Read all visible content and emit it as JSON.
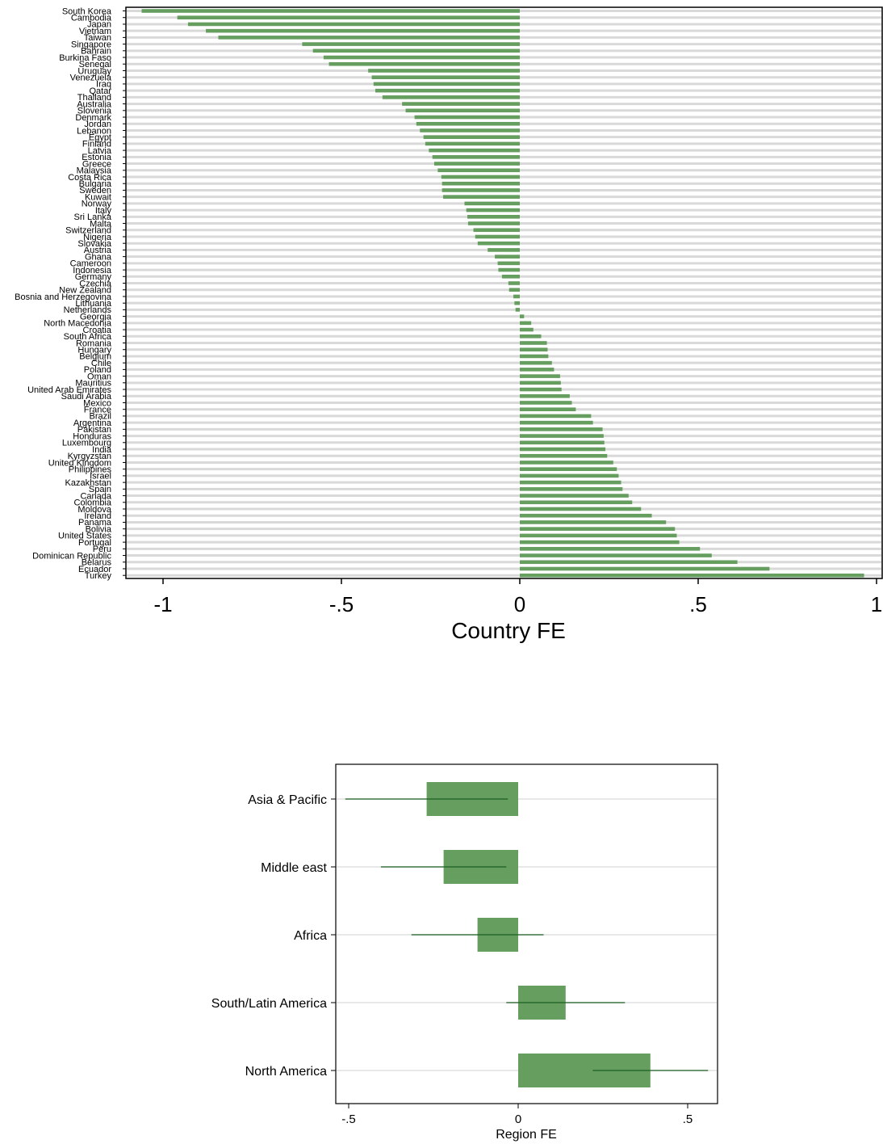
{
  "colors": {
    "bar": "#669e60",
    "ci": "#1b5e20",
    "grid": "#d9d9d9",
    "axis": "#000000"
  },
  "chart_data": [
    {
      "type": "bar",
      "orientation": "horizontal",
      "xlabel": "Country FE",
      "xlim": [
        -1.1,
        1.02
      ],
      "xticks": [
        -1,
        -0.5,
        0,
        0.5,
        1
      ],
      "xtick_labels": [
        "-1",
        "-.5",
        "0",
        ".5",
        "1"
      ],
      "grid": true,
      "categories": [
        "South Korea",
        "Cambodia",
        "Japan",
        "Vietnam",
        "Taiwan",
        "Singapore",
        "Bahrain",
        "Burkina Faso",
        "Senegal",
        "Uruguay",
        "Venezuela",
        "Iraq",
        "Qatar",
        "Thailand",
        "Australia",
        "Slovenia",
        "Denmark",
        "Jordan",
        "Lebanon",
        "Egypt",
        "Finland",
        "Latvia",
        "Estonia",
        "Greece",
        "Malaysia",
        "Costa Rica",
        "Bulgaria",
        "Sweden",
        "Kuwait",
        "Norway",
        "Italy",
        "Sri Lanka",
        "Malta",
        "Switzerland",
        "Nigeria",
        "Slovakia",
        "Austria",
        "Ghana",
        "Cameroon",
        "Indonesia",
        "Germany",
        "Czechia",
        "New Zealand",
        "Bosnia and Herzegovina",
        "Lithuania",
        "Netherlands",
        "Georgia",
        "North Macedonia",
        "Croatia",
        "South Africa",
        "Romania",
        "Hungary",
        "Belgium",
        "Chile",
        "Poland",
        "Oman",
        "Mauritius",
        "United Arab Emirates",
        "Saudi Arabia",
        "Mexico",
        "France",
        "Brazil",
        "Argentina",
        "Pakistan",
        "Honduras",
        "Luxembourg",
        "India",
        "Kyrgyzstan",
        "United Kingdom",
        "Philippines",
        "Israel",
        "Kazakhstan",
        "Spain",
        "Canada",
        "Colombia",
        "Moldova",
        "Ireland",
        "Panama",
        "Bolivia",
        "United States",
        "Portugal",
        "Peru",
        "Dominican Republic",
        "Belarus",
        "Ecuador",
        "Turkey"
      ],
      "values": [
        -1.06,
        -0.96,
        -0.93,
        -0.88,
        -0.845,
        -0.61,
        -0.58,
        -0.55,
        -0.535,
        -0.425,
        -0.415,
        -0.41,
        -0.405,
        -0.385,
        -0.33,
        -0.32,
        -0.295,
        -0.29,
        -0.28,
        -0.27,
        -0.265,
        -0.255,
        -0.245,
        -0.24,
        -0.23,
        -0.22,
        -0.218,
        -0.218,
        -0.215,
        -0.155,
        -0.15,
        -0.147,
        -0.145,
        -0.13,
        -0.125,
        -0.118,
        -0.09,
        -0.07,
        -0.062,
        -0.06,
        -0.05,
        -0.032,
        -0.03,
        -0.018,
        -0.015,
        -0.012,
        0.012,
        0.032,
        0.038,
        0.06,
        0.076,
        0.078,
        0.08,
        0.09,
        0.096,
        0.113,
        0.115,
        0.117,
        0.14,
        0.146,
        0.157,
        0.2,
        0.205,
        0.232,
        0.235,
        0.237,
        0.24,
        0.245,
        0.262,
        0.272,
        0.277,
        0.284,
        0.288,
        0.305,
        0.315,
        0.34,
        0.37,
        0.41,
        0.435,
        0.44,
        0.447,
        0.505,
        0.538,
        0.61,
        0.7,
        0.965
      ]
    },
    {
      "type": "bar",
      "orientation": "horizontal",
      "xlabel": "Region FE",
      "xlim": [
        -0.53,
        0.58
      ],
      "xticks": [
        -0.5,
        0,
        0.5
      ],
      "xtick_labels": [
        "-.5",
        "0",
        ".5"
      ],
      "grid": true,
      "categories": [
        "Asia & Pacific",
        "Middle east",
        "Africa",
        "South/Latin America",
        "North America"
      ],
      "values": [
        -0.27,
        -0.22,
        -0.12,
        0.14,
        0.39
      ],
      "ci": [
        [
          -0.51,
          -0.03
        ],
        [
          -0.405,
          -0.035
        ],
        [
          -0.315,
          0.075
        ],
        [
          -0.035,
          0.315
        ],
        [
          0.22,
          0.56
        ]
      ]
    }
  ]
}
